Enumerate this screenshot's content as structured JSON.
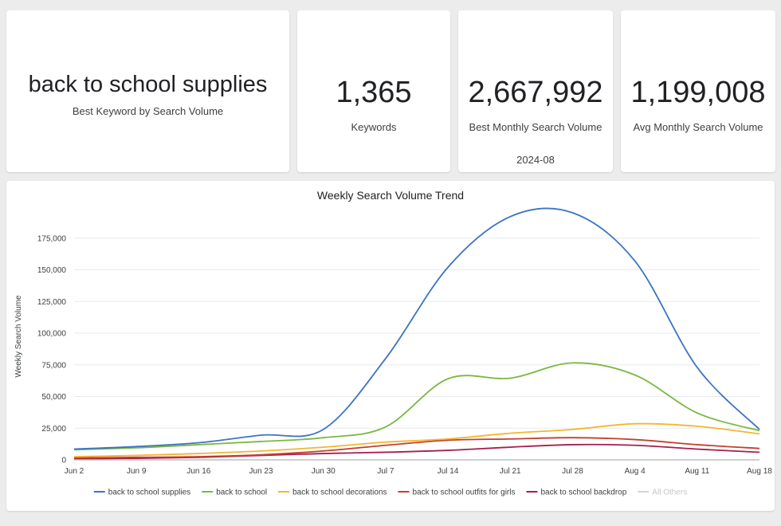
{
  "scorecards": [
    {
      "value": "back to school supplies",
      "label": "Best Keyword by Search Volume"
    },
    {
      "value": "1,365",
      "label": "Keywords"
    },
    {
      "value": "2,667,992",
      "label": "Best Monthly Search Volume",
      "sub": "2024-08"
    },
    {
      "value": "1,199,008",
      "label": "Avg Monthly Search Volume"
    }
  ],
  "chart_data": {
    "type": "line",
    "title": "Weekly Search Volume Trend",
    "ylabel": "Weekly Search Volume",
    "xlabel": "",
    "x": [
      "Jun 2",
      "Jun 9",
      "Jun 16",
      "Jun 23",
      "Jun 30",
      "Jul 7",
      "Jul 14",
      "Jul 21",
      "Jul 28",
      "Aug 4",
      "Aug 11",
      "Aug 18"
    ],
    "ylim": [
      0,
      195000
    ],
    "yticks": [
      0,
      25000,
      50000,
      75000,
      100000,
      125000,
      150000,
      175000
    ],
    "ytick_labels": [
      "0",
      "25,000",
      "50,000",
      "75,000",
      "100,000",
      "125,000",
      "150,000",
      "175,000"
    ],
    "grid": true,
    "legend_position": "bottom",
    "series": [
      {
        "name": "back to school supplies",
        "color": "#3b74c4",
        "values": [
          8500,
          10500,
          13500,
          19500,
          24000,
          80000,
          152000,
          192000,
          195000,
          157000,
          73000,
          24000
        ]
      },
      {
        "name": "back to school",
        "color": "#7cb740",
        "values": [
          8000,
          9500,
          12000,
          14500,
          17500,
          26000,
          64000,
          64500,
          76500,
          67000,
          37000,
          23000
        ]
      },
      {
        "name": "back to school decorations",
        "color": "#f3b62f",
        "values": [
          2500,
          3500,
          5000,
          7000,
          10000,
          14000,
          16500,
          21000,
          24000,
          28500,
          26500,
          20500
        ]
      },
      {
        "name": "back to school outfits for girls",
        "color": "#c33f2f",
        "values": [
          1500,
          2000,
          2500,
          4000,
          7000,
          11500,
          15500,
          16500,
          17500,
          16000,
          12000,
          9000
        ]
      },
      {
        "name": "back to school backdrop",
        "color": "#a61e4d",
        "values": [
          1000,
          1200,
          2000,
          3500,
          5000,
          6000,
          7500,
          10000,
          12000,
          11500,
          8500,
          6000
        ]
      }
    ],
    "legend_extra": {
      "name": "All Others",
      "color": "#d5d5d5"
    }
  }
}
